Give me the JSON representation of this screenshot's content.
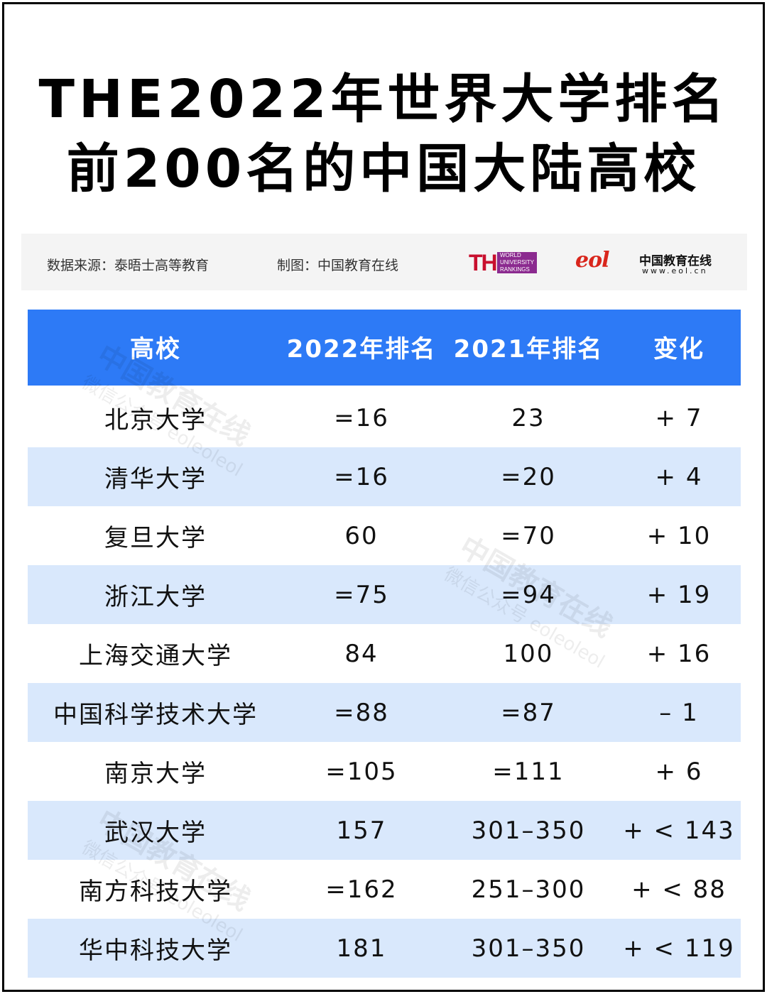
{
  "title": {
    "line1": "THE2022年世界大学排名",
    "line2": "前200名的中国大陆高校"
  },
  "source": {
    "data_source": "数据来源：泰晤士高等教育",
    "chart_by": "制图：中国教育在线",
    "the_logo": {
      "main": "THE",
      "sub": "WORLD UNIVERSITY RANKINGS"
    },
    "eol_logo": {
      "mark": "eol",
      "name": "中国教育在线",
      "url": "www.eol.cn"
    }
  },
  "watermark": {
    "name": "中国教育在线",
    "sub": "微信公众号 eoleoleol"
  },
  "colors": {
    "header": "#2d7af6",
    "stripe": "#d9e8fc",
    "text": "#111111"
  },
  "chart_data": {
    "type": "table",
    "title": "THE2022年世界大学排名前200名的中国大陆高校",
    "columns": [
      "高校",
      "2022年排名",
      "2021年排名",
      "变化"
    ],
    "rows": [
      [
        "北京大学",
        "=16",
        "23",
        "+ 7"
      ],
      [
        "清华大学",
        "=16",
        "=20",
        "+ 4"
      ],
      [
        "复旦大学",
        "60",
        "=70",
        "+ 10"
      ],
      [
        "浙江大学",
        "=75",
        "=94",
        "+ 19"
      ],
      [
        "上海交通大学",
        "84",
        "100",
        "+ 16"
      ],
      [
        "中国科学技术大学",
        "=88",
        "=87",
        "– 1"
      ],
      [
        "南京大学",
        "=105",
        "=111",
        "+ 6"
      ],
      [
        "武汉大学",
        "157",
        "301–350",
        "+ < 143"
      ],
      [
        "南方科技大学",
        "=162",
        "251–300",
        "+ < 88"
      ],
      [
        "华中科技大学",
        "181",
        "301–350",
        "+ < 119"
      ]
    ]
  }
}
